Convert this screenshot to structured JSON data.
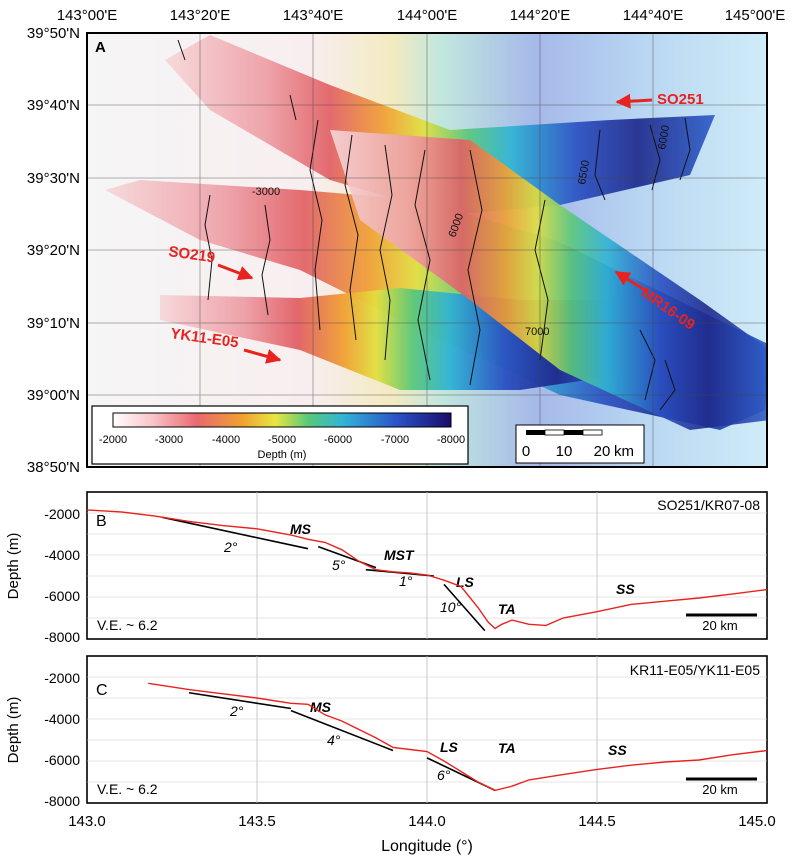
{
  "panel_a": {
    "label": "A",
    "lon_ticks": [
      "143°00'E",
      "143°20'E",
      "143°40'E",
      "144°00'E",
      "144°20'E",
      "144°40'E",
      "145°00'E"
    ],
    "lat_ticks": [
      "39°50'N",
      "39°40'N",
      "39°30'N",
      "39°20'N",
      "39°10'N",
      "39°00'N",
      "38°50'N"
    ],
    "cruises": [
      {
        "name": "SO251",
        "color": "#e8231f"
      },
      {
        "name": "SO219",
        "color": "#e8231f"
      },
      {
        "name": "MR16-09",
        "color": "#e8231f"
      },
      {
        "name": "YK11-E05",
        "color": "#e8231f"
      }
    ],
    "contour_labels": [
      "-3000",
      "6000",
      "6500",
      "6000",
      "7000"
    ],
    "colorbar": {
      "ticks": [
        "-2000",
        "-3000",
        "-4000",
        "-5000",
        "-6000",
        "-7000",
        "-8000"
      ],
      "label": "Depth (m)",
      "stops": [
        "#ffffff",
        "#f7c2c6",
        "#e9696f",
        "#f0a030",
        "#e8e640",
        "#55c87a",
        "#33b4d6",
        "#2a52c8",
        "#1a0d6b"
      ]
    },
    "scalebar": {
      "ticks": [
        "0",
        "10",
        "20"
      ],
      "unit": "km"
    }
  },
  "profile_b": {
    "label": "B",
    "title": "SO251/KR07-08",
    "ve": "V.E. ~ 6.2",
    "scale": "20 km",
    "slopes": [
      "2°",
      "5°",
      "1°",
      "10°"
    ],
    "features": [
      "MS",
      "MST",
      "LS",
      "TA",
      "SS"
    ],
    "profile": [
      [
        143.0,
        -1850
      ],
      [
        143.1,
        -1950
      ],
      [
        143.2,
        -2150
      ],
      [
        143.3,
        -2400
      ],
      [
        143.4,
        -2600
      ],
      [
        143.5,
        -2750
      ],
      [
        143.6,
        -3050
      ],
      [
        143.65,
        -3250
      ],
      [
        143.7,
        -3400
      ],
      [
        143.75,
        -3750
      ],
      [
        143.8,
        -4300
      ],
      [
        143.85,
        -4700
      ],
      [
        143.9,
        -4800
      ],
      [
        143.95,
        -4850
      ],
      [
        144.0,
        -4950
      ],
      [
        144.05,
        -5200
      ],
      [
        144.1,
        -5500
      ],
      [
        144.15,
        -6500
      ],
      [
        144.18,
        -7200
      ],
      [
        144.2,
        -7500
      ],
      [
        144.22,
        -7300
      ],
      [
        144.25,
        -7100
      ],
      [
        144.3,
        -7300
      ],
      [
        144.35,
        -7350
      ],
      [
        144.4,
        -7000
      ],
      [
        144.5,
        -6700
      ],
      [
        144.6,
        -6350
      ],
      [
        144.7,
        -6200
      ],
      [
        144.8,
        -6050
      ],
      [
        144.9,
        -5850
      ],
      [
        145.0,
        -5650
      ]
    ],
    "slope_lines": [
      [
        [
          143.22,
          -2200
        ],
        [
          143.65,
          -3700
        ]
      ],
      [
        [
          143.68,
          -3600
        ],
        [
          143.85,
          -4600
        ]
      ],
      [
        [
          143.82,
          -4700
        ],
        [
          144.02,
          -5000
        ]
      ],
      [
        [
          144.05,
          -5400
        ],
        [
          144.17,
          -7600
        ]
      ]
    ]
  },
  "profile_c": {
    "label": "C",
    "title": "KR11-E05/YK11-E05",
    "ve": "V.E. ~ 6.2",
    "scale": "20 km",
    "slopes": [
      "2°",
      "4°",
      "6°"
    ],
    "features": [
      "MS",
      "LS",
      "TA",
      "SS"
    ],
    "profile": [
      [
        143.18,
        -2300
      ],
      [
        143.3,
        -2600
      ],
      [
        143.4,
        -2800
      ],
      [
        143.5,
        -3000
      ],
      [
        143.6,
        -3250
      ],
      [
        143.65,
        -3300
      ],
      [
        143.7,
        -3800
      ],
      [
        143.75,
        -4100
      ],
      [
        143.8,
        -4500
      ],
      [
        143.85,
        -4900
      ],
      [
        143.9,
        -5350
      ],
      [
        143.95,
        -5450
      ],
      [
        144.0,
        -5550
      ],
      [
        144.05,
        -6000
      ],
      [
        144.1,
        -6500
      ],
      [
        144.15,
        -7000
      ],
      [
        144.2,
        -7400
      ],
      [
        144.25,
        -7200
      ],
      [
        144.3,
        -6900
      ],
      [
        144.4,
        -6650
      ],
      [
        144.5,
        -6400
      ],
      [
        144.6,
        -6200
      ],
      [
        144.7,
        -6050
      ],
      [
        144.8,
        -5950
      ],
      [
        144.9,
        -5700
      ],
      [
        145.0,
        -5500
      ]
    ],
    "slope_lines": [
      [
        [
          143.3,
          -2750
        ],
        [
          143.6,
          -3500
        ]
      ],
      [
        [
          143.6,
          -3600
        ],
        [
          143.9,
          -5500
        ]
      ],
      [
        [
          144.0,
          -5850
        ],
        [
          144.2,
          -7400
        ]
      ]
    ]
  },
  "profile_axes": {
    "y_ticks": [
      "-2000",
      "-4000",
      "-6000",
      "-8000"
    ],
    "y_label": "Depth (m)",
    "x_ticks": [
      "143.0",
      "143.5",
      "144.0",
      "144.5",
      "145.0"
    ],
    "x_label": "Longitude (°)"
  }
}
